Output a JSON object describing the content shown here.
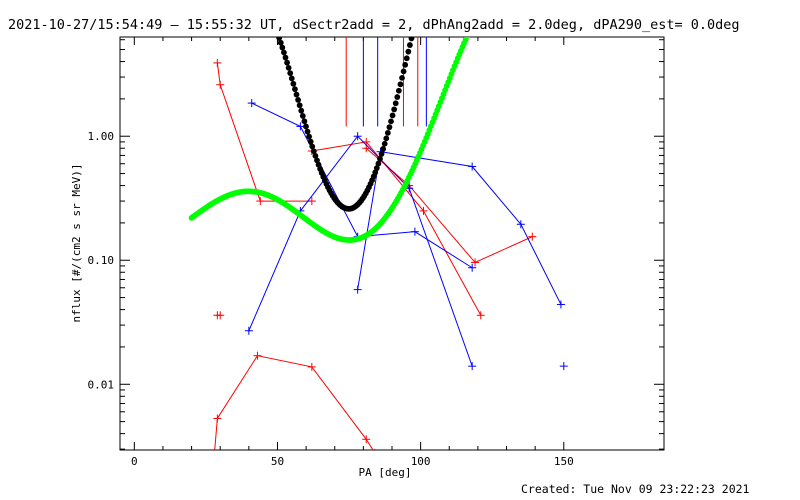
{
  "chart_data": {
    "type": "line",
    "title": "2021-10-27/15:54:49 – 15:55:32 UT, dSectr2add = 2, dPhAng2add = 2.0deg, dPA290_est=  0.0deg",
    "xlabel": "PA [deg]",
    "ylabel": "nflux [#/(cm2 s sr MeV)]",
    "xlim": [
      -5,
      185
    ],
    "ylim_log10": [
      -2.53,
      0.8
    ],
    "log_y": true,
    "xticks": [
      0,
      50,
      100,
      150
    ],
    "yticks": [
      {
        "value": 0.01,
        "label": "0.01"
      },
      {
        "value": 0.1,
        "label": "0.10"
      },
      {
        "value": 1.0,
        "label": "1.00"
      }
    ],
    "footer": "Created: Tue Nov 09 23:22:23 2021",
    "vlines": {
      "red": [
        74,
        94,
        99
      ],
      "blue": [
        80,
        85,
        102
      ]
    },
    "series": [
      {
        "color": "#ff0000",
        "points": [
          [
            29,
            3.9
          ],
          [
            30,
            2.6
          ],
          [
            44,
            0.3
          ],
          [
            62,
            0.3
          ]
        ]
      },
      {
        "color": "#ff0000",
        "points": [
          [
            29,
            0.036
          ],
          [
            30,
            0.036
          ]
        ]
      },
      {
        "color": "#ff0000",
        "points": [
          [
            62,
            0.76
          ],
          [
            81,
            0.9
          ],
          [
            101,
            0.25
          ],
          [
            121,
            0.036
          ]
        ]
      },
      {
        "color": "#ff0000",
        "points": [
          [
            28,
            0.0028
          ],
          [
            29,
            0.0053
          ],
          [
            43,
            0.017
          ],
          [
            62,
            0.0138
          ],
          [
            81,
            0.0036
          ],
          [
            84,
            0.0028
          ]
        ]
      },
      {
        "color": "#ff0000",
        "points": [
          [
            81,
            0.8
          ],
          [
            96,
            0.4
          ],
          [
            119,
            0.096
          ],
          [
            139,
            0.155
          ]
        ]
      },
      {
        "color": "#0000ff",
        "points": [
          [
            41,
            1.85
          ],
          [
            58,
            1.2
          ],
          [
            78,
            0.155
          ],
          [
            98,
            0.17
          ],
          [
            118,
            0.087
          ]
        ]
      },
      {
        "color": "#0000ff",
        "points": [
          [
            40,
            0.027
          ],
          [
            58,
            0.25
          ],
          [
            78,
            1.0
          ],
          [
            96,
            0.38
          ],
          [
            118,
            0.014
          ]
        ]
      },
      {
        "color": "#0000ff",
        "points": [
          [
            78,
            0.058
          ],
          [
            86,
            0.75
          ],
          [
            118,
            0.57
          ],
          [
            135,
            0.195
          ],
          [
            149,
            0.044
          ]
        ]
      },
      {
        "color": "#0000ff",
        "points": [
          [
            150,
            0.014
          ]
        ]
      }
    ],
    "fit_curves": [
      {
        "color": "#000000",
        "kind": "cos_poly",
        "coef": [
          0.76,
          -0.75,
          -0.04,
          0.33,
          -0.65,
          -0.65
        ],
        "x_range": [
          33,
          160
        ]
      },
      {
        "color": "#00ff00",
        "kind": "cos_poly",
        "coef": [
          0.0,
          -0.92,
          0.13,
          0.37,
          -0.45
        ],
        "x_range": [
          20,
          151
        ]
      }
    ]
  }
}
